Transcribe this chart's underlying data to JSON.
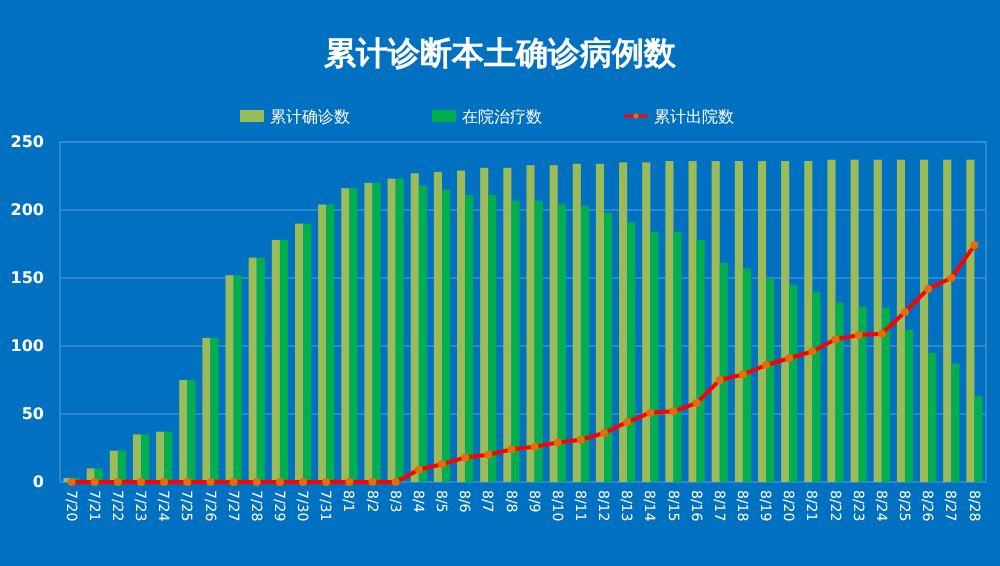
{
  "chart_data": {
    "type": "bar",
    "title": "累计诊断本土确诊病例数",
    "categories": [
      "7/20",
      "7/21",
      "7/22",
      "7/23",
      "7/24",
      "7/25",
      "7/26",
      "7/27",
      "7/28",
      "7/29",
      "7/30",
      "7/31",
      "8/1",
      "8/2",
      "8/3",
      "8/4",
      "8/5",
      "8/6",
      "8/7",
      "8/8",
      "8/9",
      "8/10",
      "8/11",
      "8/12",
      "8/13",
      "8/14",
      "8/15",
      "8/16",
      "8/17",
      "8/18",
      "8/19",
      "8/20",
      "8/21",
      "8/22",
      "8/23",
      "8/24",
      "8/25",
      "8/26",
      "8/27",
      "8/28"
    ],
    "series": [
      {
        "name": "累计确诊数",
        "color": "#9bbb59",
        "values": [
          3,
          10,
          23,
          35,
          37,
          75,
          106,
          152,
          165,
          178,
          190,
          204,
          216,
          220,
          223,
          227,
          228,
          229,
          231,
          231,
          233,
          233,
          234,
          234,
          235,
          235,
          236,
          236,
          236,
          236,
          236,
          236,
          236,
          237,
          237,
          237,
          237,
          237,
          237,
          237
        ]
      },
      {
        "name": "在院治疗数",
        "color": "#00b050",
        "values": [
          3,
          10,
          23,
          35,
          37,
          75,
          106,
          152,
          165,
          178,
          190,
          204,
          216,
          220,
          223,
          218,
          215,
          211,
          211,
          207,
          207,
          204,
          203,
          198,
          191,
          184,
          184,
          178,
          161,
          157,
          150,
          145,
          140,
          132,
          129,
          128,
          112,
          95,
          87,
          63
        ]
      },
      {
        "name": "累计出院数",
        "type": "line",
        "color": "#ff0000",
        "values": [
          0,
          0,
          0,
          0,
          0,
          0,
          0,
          0,
          0,
          0,
          0,
          0,
          0,
          0,
          0,
          9,
          13,
          18,
          20,
          24,
          26,
          29,
          31,
          36,
          44,
          51,
          52,
          58,
          75,
          79,
          86,
          91,
          96,
          105,
          108,
          109,
          125,
          142,
          150,
          174
        ]
      }
    ],
    "ylim": [
      0,
      250
    ],
    "yticks": [
      0,
      50,
      100,
      150,
      200,
      250
    ],
    "grid": "y",
    "legend": "top",
    "marker": "circle"
  }
}
